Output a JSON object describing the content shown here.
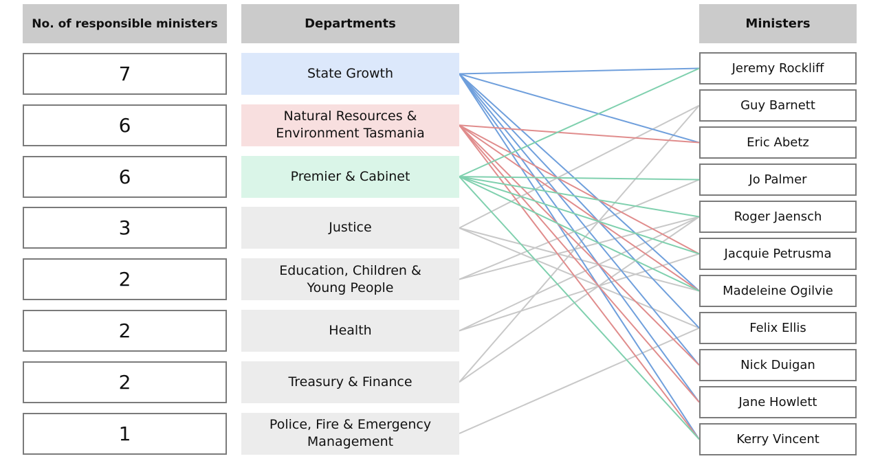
{
  "headers": {
    "count": "No. of responsible ministers",
    "departments": "Departments",
    "ministers": "Ministers"
  },
  "departments": [
    {
      "name": "State Growth",
      "count": "7",
      "fill": "#dce8fb",
      "line": "#6f9fdc",
      "ministers": [
        0,
        2,
        6,
        7,
        8,
        9,
        10
      ]
    },
    {
      "name": "Natural Resources &\nEnvironment Tasmania",
      "count": "6",
      "fill": "#f8dfdf",
      "line": "#e08c8c",
      "ministers": [
        2,
        5,
        6,
        8,
        9,
        10
      ]
    },
    {
      "name": "Premier & Cabinet",
      "count": "6",
      "fill": "#daf5e8",
      "line": "#7fd0ae",
      "ministers": [
        0,
        3,
        4,
        5,
        6,
        10
      ]
    },
    {
      "name": "Justice",
      "count": "3",
      "fill": "#ececec",
      "line": "#c8c8c8",
      "ministers": [
        1,
        6,
        7
      ]
    },
    {
      "name": "Education, Children &\nYoung People",
      "count": "2",
      "fill": "#ececec",
      "line": "#c8c8c8",
      "ministers": [
        3,
        4
      ]
    },
    {
      "name": "Health",
      "count": "2",
      "fill": "#ececec",
      "line": "#c8c8c8",
      "ministers": [
        4,
        5
      ]
    },
    {
      "name": "Treasury & Finance",
      "count": "2",
      "fill": "#ececec",
      "line": "#c8c8c8",
      "ministers": [
        1,
        4
      ]
    },
    {
      "name": "Police, Fire & Emergency\nManagement",
      "count": "1",
      "fill": "#ececec",
      "line": "#c8c8c8",
      "ministers": [
        7
      ]
    }
  ],
  "ministers": [
    "Jeremy Rockliff",
    "Guy Barnett",
    "Eric Abetz",
    "Jo Palmer",
    "Roger Jaensch",
    "Jacquie Petrusma",
    "Madeleine Ogilvie",
    "Felix Ellis",
    "Nick Duigan",
    "Jane Howlett",
    "Kerry Vincent"
  ]
}
